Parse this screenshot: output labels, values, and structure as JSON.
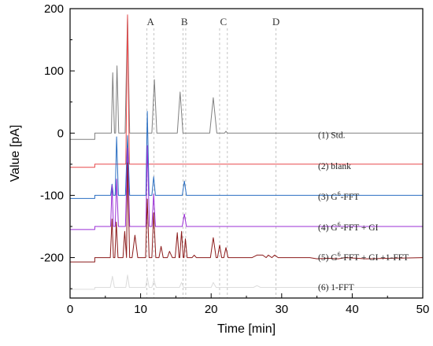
{
  "chart_data": {
    "type": "line",
    "title": "",
    "xlabel": "Time [min]",
    "ylabel": "Value [pA]",
    "xlim": [
      0,
      50
    ],
    "ylim": [
      -265,
      200
    ],
    "x_ticks": [
      0,
      10,
      20,
      30,
      40,
      50
    ],
    "y_ticks": [
      200,
      100,
      0,
      -100,
      -200
    ],
    "grid": false,
    "ref_lines": [
      {
        "label": "A",
        "x": [
          10.9,
          11.9
        ]
      },
      {
        "label": "B",
        "x": [
          16.0,
          16.4
        ]
      },
      {
        "label": "C",
        "x": [
          21.2,
          22.3
        ]
      },
      {
        "label": "D",
        "x": [
          29.2
        ]
      }
    ],
    "series": [
      {
        "name": "(1) Std.",
        "color": "#808080",
        "baseline": -10,
        "baseline_start": 0,
        "step_x": 3.5,
        "level": 0,
        "points": [
          [
            5.85,
            0
          ],
          [
            6.05,
            97
          ],
          [
            6.3,
            0
          ],
          [
            6.45,
            0
          ],
          [
            6.65,
            108
          ],
          [
            6.9,
            0
          ],
          [
            7.8,
            0
          ],
          [
            8.15,
            190
          ],
          [
            8.45,
            0
          ],
          [
            11.6,
            0
          ],
          [
            11.95,
            86
          ],
          [
            12.3,
            0
          ],
          [
            15.2,
            0
          ],
          [
            15.6,
            66
          ],
          [
            16.0,
            0
          ],
          [
            19.8,
            0
          ],
          [
            20.3,
            57
          ],
          [
            20.8,
            0
          ],
          [
            21.9,
            0
          ],
          [
            22.1,
            3
          ],
          [
            22.3,
            0
          ]
        ]
      },
      {
        "name": "(2) blank",
        "color": "#e8494a",
        "baseline": -55,
        "baseline_start": 0,
        "step_x": 3.5,
        "level": -50,
        "points": [
          [
            7.9,
            -50
          ],
          [
            8.15,
            190
          ],
          [
            8.4,
            -50
          ]
        ]
      },
      {
        "name": "(3) G6-FFT",
        "color": "#2b6fc2",
        "baseline": -105,
        "baseline_start": 0,
        "step_x": 3.5,
        "level": -100,
        "points": [
          [
            5.75,
            -100
          ],
          [
            5.95,
            -82
          ],
          [
            6.15,
            -100
          ],
          [
            6.4,
            -100
          ],
          [
            6.6,
            -6
          ],
          [
            6.85,
            -100
          ],
          [
            7.85,
            -100
          ],
          [
            8.15,
            -4
          ],
          [
            8.45,
            -100
          ],
          [
            10.75,
            -100
          ],
          [
            10.95,
            35
          ],
          [
            11.2,
            -100
          ],
          [
            11.6,
            -100
          ],
          [
            11.85,
            -70
          ],
          [
            12.1,
            -100
          ],
          [
            15.9,
            -100
          ],
          [
            16.2,
            -77
          ],
          [
            16.5,
            -100
          ]
        ]
      },
      {
        "name": "(4) G6-FFT + GI",
        "color": "#9b2fd6",
        "baseline": -155,
        "baseline_start": 0,
        "step_x": 3.5,
        "level": -150,
        "points": [
          [
            5.75,
            -150
          ],
          [
            5.95,
            -84
          ],
          [
            6.15,
            -150
          ],
          [
            6.4,
            -150
          ],
          [
            6.6,
            -74
          ],
          [
            6.85,
            -150
          ],
          [
            7.85,
            -150
          ],
          [
            8.15,
            -24
          ],
          [
            8.45,
            -150
          ],
          [
            10.75,
            -150
          ],
          [
            10.95,
            -20
          ],
          [
            11.25,
            -150
          ],
          [
            11.6,
            -150
          ],
          [
            11.85,
            -98
          ],
          [
            12.1,
            -150
          ],
          [
            15.9,
            -150
          ],
          [
            16.2,
            -130
          ],
          [
            16.5,
            -150
          ]
        ]
      },
      {
        "name": "(5) G6-FFT + GI +1-FFT",
        "color": "#8b1a1a",
        "baseline": -207,
        "baseline_start": 0,
        "step_x": 3.5,
        "level": -200,
        "points": [
          [
            5.7,
            -200
          ],
          [
            5.95,
            -138
          ],
          [
            6.15,
            -200
          ],
          [
            6.35,
            -200
          ],
          [
            6.55,
            -143
          ],
          [
            6.8,
            -200
          ],
          [
            7.5,
            -200
          ],
          [
            7.75,
            -158
          ],
          [
            8.0,
            -200
          ],
          [
            8.15,
            -48
          ],
          [
            8.45,
            -200
          ],
          [
            8.8,
            -200
          ],
          [
            9.2,
            -164
          ],
          [
            9.6,
            -200
          ],
          [
            10.7,
            -200
          ],
          [
            10.95,
            -106
          ],
          [
            11.2,
            -200
          ],
          [
            11.6,
            -200
          ],
          [
            11.85,
            -128
          ],
          [
            12.15,
            -200
          ],
          [
            12.6,
            -200
          ],
          [
            12.9,
            -182
          ],
          [
            13.2,
            -200
          ],
          [
            13.8,
            -200
          ],
          [
            14.1,
            -190
          ],
          [
            14.5,
            -200
          ],
          [
            14.9,
            -200
          ],
          [
            15.2,
            -160
          ],
          [
            15.45,
            -200
          ],
          [
            15.55,
            -200
          ],
          [
            15.8,
            -158
          ],
          [
            16.05,
            -200
          ],
          [
            16.15,
            -200
          ],
          [
            16.35,
            -170
          ],
          [
            16.6,
            -200
          ],
          [
            17.3,
            -200
          ],
          [
            17.6,
            -196
          ],
          [
            17.9,
            -200
          ],
          [
            19.9,
            -200
          ],
          [
            20.3,
            -168
          ],
          [
            20.7,
            -200
          ],
          [
            20.9,
            -200
          ],
          [
            21.2,
            -180
          ],
          [
            21.5,
            -200
          ],
          [
            21.8,
            -200
          ],
          [
            22.1,
            -184
          ],
          [
            22.4,
            -200
          ],
          [
            25.8,
            -200
          ],
          [
            26.5,
            -196
          ],
          [
            27.3,
            -196
          ],
          [
            27.8,
            -200
          ],
          [
            28.1,
            -196
          ],
          [
            28.6,
            -200
          ],
          [
            29.0,
            -196
          ],
          [
            29.5,
            -200
          ],
          [
            34.0,
            -200
          ],
          [
            35.0,
            -202
          ],
          [
            36.5,
            -201
          ],
          [
            38.0,
            -202
          ],
          [
            39.0,
            -200
          ],
          [
            40.5,
            -201
          ],
          [
            42.0,
            -202
          ]
        ]
      },
      {
        "name": "(6) 1-FFT",
        "color": "#dcdcdc",
        "baseline": -251,
        "baseline_start": 0,
        "step_x": 3.5,
        "level": -248,
        "points": [
          [
            5.7,
            -248
          ],
          [
            6.0,
            -230
          ],
          [
            6.3,
            -248
          ],
          [
            7.9,
            -248
          ],
          [
            8.15,
            -228
          ],
          [
            8.4,
            -248
          ],
          [
            10.7,
            -248
          ],
          [
            10.95,
            -232
          ],
          [
            11.2,
            -248
          ],
          [
            11.6,
            -248
          ],
          [
            11.9,
            -236
          ],
          [
            12.2,
            -248
          ],
          [
            15.5,
            -248
          ],
          [
            15.8,
            -240
          ],
          [
            16.1,
            -248
          ],
          [
            20.0,
            -248
          ],
          [
            20.3,
            -240
          ],
          [
            20.7,
            -248
          ],
          [
            26.0,
            -248
          ],
          [
            26.5,
            -245
          ],
          [
            27.0,
            -248
          ]
        ]
      }
    ],
    "series_labels": [
      {
        "prefix": "(1) Std.",
        "sup": "",
        "suffix": "",
        "y": -3
      },
      {
        "prefix": "(2) blank",
        "sup": "",
        "suffix": "",
        "y": -53
      },
      {
        "prefix": "(3) G",
        "sup": "6",
        "suffix": "-FFT",
        "y": -102
      },
      {
        "prefix": "(4) G",
        "sup": "6",
        "suffix": "-FFT + GI",
        "y": -151
      },
      {
        "prefix": "(5) G",
        "sup": "6",
        "suffix": "-FFT + GI +1-FFT",
        "y": -199
      },
      {
        "prefix": "(6) 1-FFT",
        "sup": "",
        "suffix": "",
        "y": -247
      }
    ]
  }
}
